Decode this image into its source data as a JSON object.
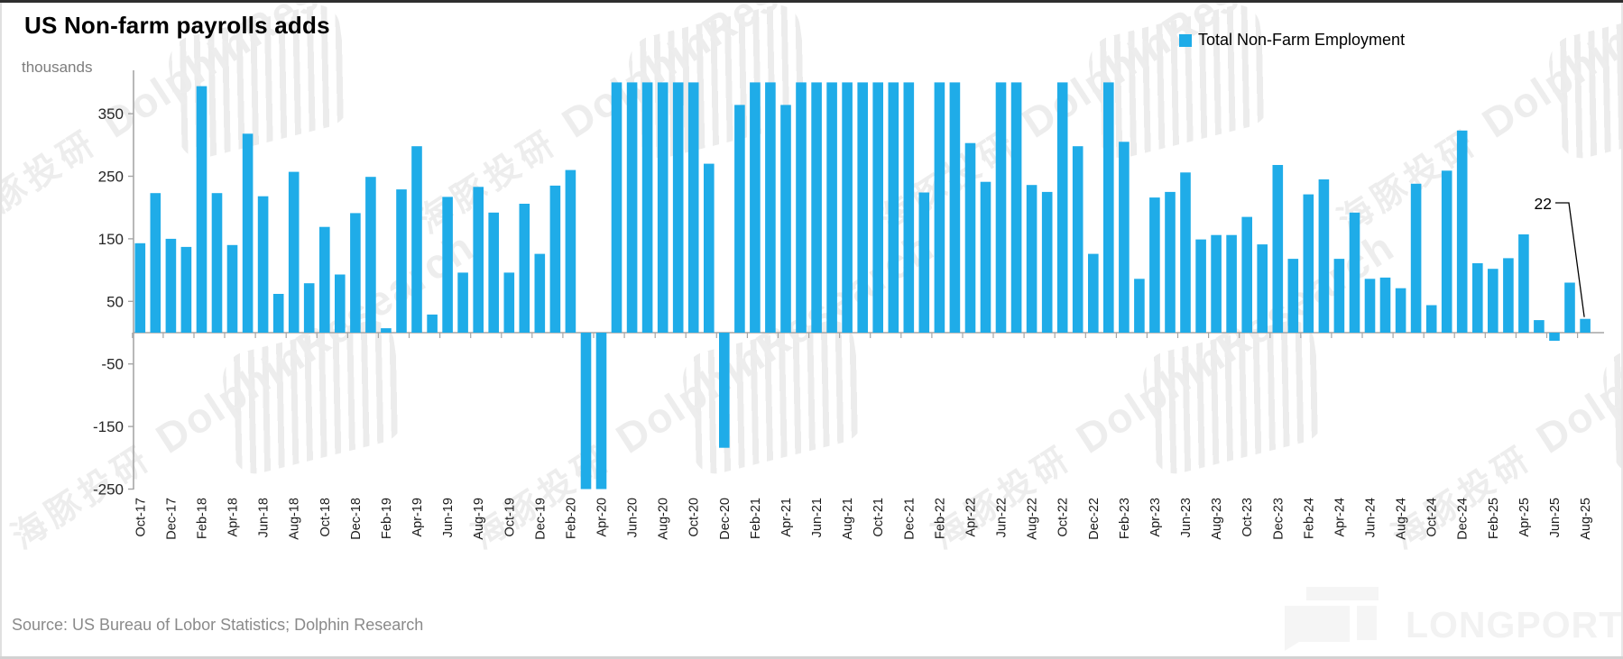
{
  "title": "US Non-farm payrolls adds",
  "axis_unit_label": "thousands",
  "legend": {
    "label": "Total Non-Farm Employment",
    "swatch_color": "#1FACE8"
  },
  "source_note": "Source: US Bureau of Lobor Statistics; Dolphin Research",
  "watermark": {
    "cn": "海豚投研",
    "en": "DolphinResearch",
    "brand": "LONGPORT"
  },
  "chart_data": {
    "type": "bar",
    "title": "US Non-farm payrolls adds",
    "ylabel": "thousands",
    "series_name": "Total Non-Farm Employment",
    "bar_color": "#1FACE8",
    "axis_color": "#a6a6a6",
    "y_ticks": [
      350,
      250,
      150,
      50,
      -50,
      -150,
      -250
    ],
    "ylim": [
      -252,
      419
    ],
    "clip_max": 400,
    "clip_min": -250,
    "label_every": 2,
    "legend_position": "top-right",
    "grid": false,
    "categories": [
      "Oct-17",
      "Nov-17",
      "Dec-17",
      "Jan-18",
      "Feb-18",
      "Mar-18",
      "Apr-18",
      "May-18",
      "Jun-18",
      "Jul-18",
      "Aug-18",
      "Sep-18",
      "Oct-18",
      "Nov-18",
      "Dec-18",
      "Jan-19",
      "Feb-19",
      "Mar-19",
      "Apr-19",
      "May-19",
      "Jun-19",
      "Jul-19",
      "Aug-19",
      "Sep-19",
      "Oct-19",
      "Nov-19",
      "Dec-19",
      "Jan-20",
      "Feb-20",
      "Mar-20",
      "Apr-20",
      "May-20",
      "Jun-20",
      "Jul-20",
      "Aug-20",
      "Sep-20",
      "Oct-20",
      "Nov-20",
      "Dec-20",
      "Jan-21",
      "Feb-21",
      "Mar-21",
      "Apr-21",
      "May-21",
      "Jun-21",
      "Jul-21",
      "Aug-21",
      "Sep-21",
      "Oct-21",
      "Nov-21",
      "Dec-21",
      "Jan-22",
      "Feb-22",
      "Mar-22",
      "Apr-22",
      "May-22",
      "Jun-22",
      "Jul-22",
      "Aug-22",
      "Sep-22",
      "Oct-22",
      "Nov-22",
      "Dec-22",
      "Jan-23",
      "Feb-23",
      "Mar-23",
      "Apr-23",
      "May-23",
      "Jun-23",
      "Jul-23",
      "Aug-23",
      "Sep-23",
      "Oct-23",
      "Nov-23",
      "Dec-23",
      "Jan-24",
      "Feb-24",
      "Mar-24",
      "Apr-24",
      "May-24",
      "Jun-24",
      "Jul-24",
      "Aug-24",
      "Sep-24",
      "Oct-24",
      "Nov-24",
      "Dec-24",
      "Jan-25",
      "Feb-25",
      "Mar-25",
      "Apr-25",
      "May-25",
      "Jun-25",
      "Jul-25",
      "Aug-25"
    ],
    "values": [
      143,
      223,
      150,
      137,
      394,
      223,
      140,
      318,
      218,
      62,
      257,
      79,
      169,
      93,
      191,
      249,
      7,
      229,
      298,
      29,
      217,
      96,
      233,
      192,
      96,
      206,
      126,
      235,
      260,
      -250,
      -250,
      400,
      400,
      400,
      400,
      400,
      400,
      270,
      -184,
      364,
      400,
      400,
      364,
      400,
      400,
      400,
      400,
      400,
      400,
      400,
      400,
      224,
      400,
      400,
      303,
      241,
      400,
      400,
      236,
      225,
      400,
      298,
      126,
      400,
      305,
      86,
      216,
      225,
      256,
      149,
      156,
      156,
      185,
      141,
      268,
      118,
      221,
      245,
      118,
      192,
      86,
      88,
      71,
      238,
      44,
      259,
      323,
      111,
      102,
      119,
      157,
      20,
      -13,
      80,
      22
    ],
    "annotation": {
      "text": "22",
      "target_month": "Aug-25",
      "target_value": 22
    }
  }
}
